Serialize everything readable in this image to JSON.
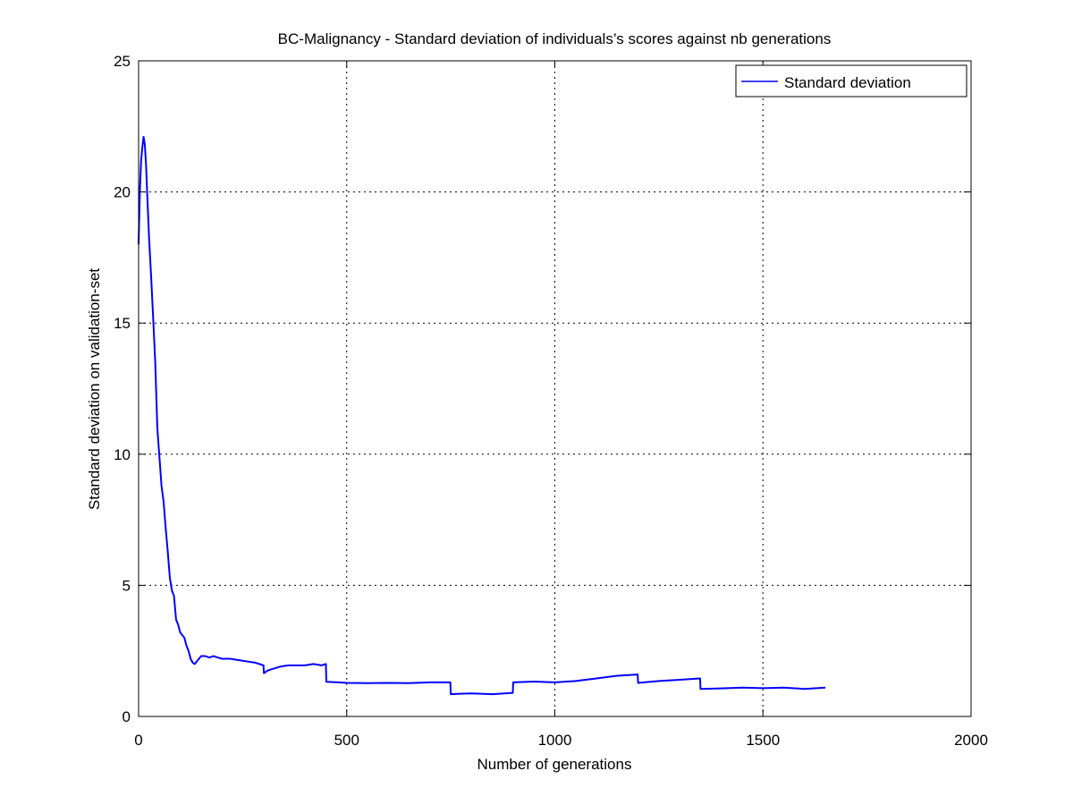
{
  "chart_data": {
    "type": "line",
    "title": "BC-Malignancy - Standard deviation of individuals’s scores against nb generations",
    "xlabel": "Number of generations",
    "ylabel": "Standard deviation on validation-set",
    "xlim": [
      0,
      2000
    ],
    "ylim": [
      0,
      25
    ],
    "xticks": [
      0,
      500,
      1000,
      1500,
      2000
    ],
    "yticks": [
      0,
      5,
      10,
      15,
      20,
      25
    ],
    "grid": true,
    "legend": {
      "placement": "top-right",
      "entries": [
        "Standard deviation"
      ]
    },
    "series": [
      {
        "name": "Standard deviation",
        "color": "#0000ff",
        "x": [
          0,
          3,
          6,
          9,
          12,
          15,
          18,
          21,
          25,
          30,
          35,
          40,
          45,
          50,
          55,
          60,
          65,
          70,
          75,
          80,
          85,
          90,
          95,
          100,
          105,
          110,
          115,
          120,
          125,
          130,
          135,
          140,
          145,
          150,
          160,
          170,
          180,
          190,
          200,
          220,
          240,
          260,
          280,
          300,
          301,
          310,
          320,
          340,
          360,
          380,
          400,
          420,
          440,
          450,
          451,
          480,
          500,
          550,
          600,
          650,
          700,
          749,
          750,
          780,
          800,
          850,
          899,
          900,
          950,
          1000,
          1050,
          1100,
          1150,
          1199,
          1200,
          1250,
          1300,
          1349,
          1350,
          1400,
          1450,
          1500,
          1550,
          1600,
          1650
        ],
        "y": [
          18.0,
          20.0,
          21.2,
          21.7,
          22.1,
          21.8,
          21.0,
          19.8,
          18.3,
          16.8,
          15.2,
          13.5,
          11.0,
          9.9,
          8.8,
          8.2,
          7.2,
          6.3,
          5.3,
          4.8,
          4.6,
          3.7,
          3.5,
          3.2,
          3.1,
          3.0,
          2.7,
          2.5,
          2.2,
          2.05,
          2.0,
          2.1,
          2.2,
          2.3,
          2.3,
          2.25,
          2.3,
          2.25,
          2.2,
          2.2,
          2.15,
          2.1,
          2.05,
          1.95,
          1.65,
          1.75,
          1.8,
          1.9,
          1.95,
          1.95,
          1.95,
          2.0,
          1.95,
          2.0,
          1.32,
          1.3,
          1.28,
          1.27,
          1.28,
          1.27,
          1.3,
          1.3,
          0.85,
          0.87,
          0.88,
          0.85,
          0.9,
          1.3,
          1.33,
          1.3,
          1.35,
          1.45,
          1.55,
          1.6,
          1.28,
          1.35,
          1.4,
          1.45,
          1.05,
          1.07,
          1.1,
          1.08,
          1.1,
          1.05,
          1.1
        ]
      }
    ]
  }
}
